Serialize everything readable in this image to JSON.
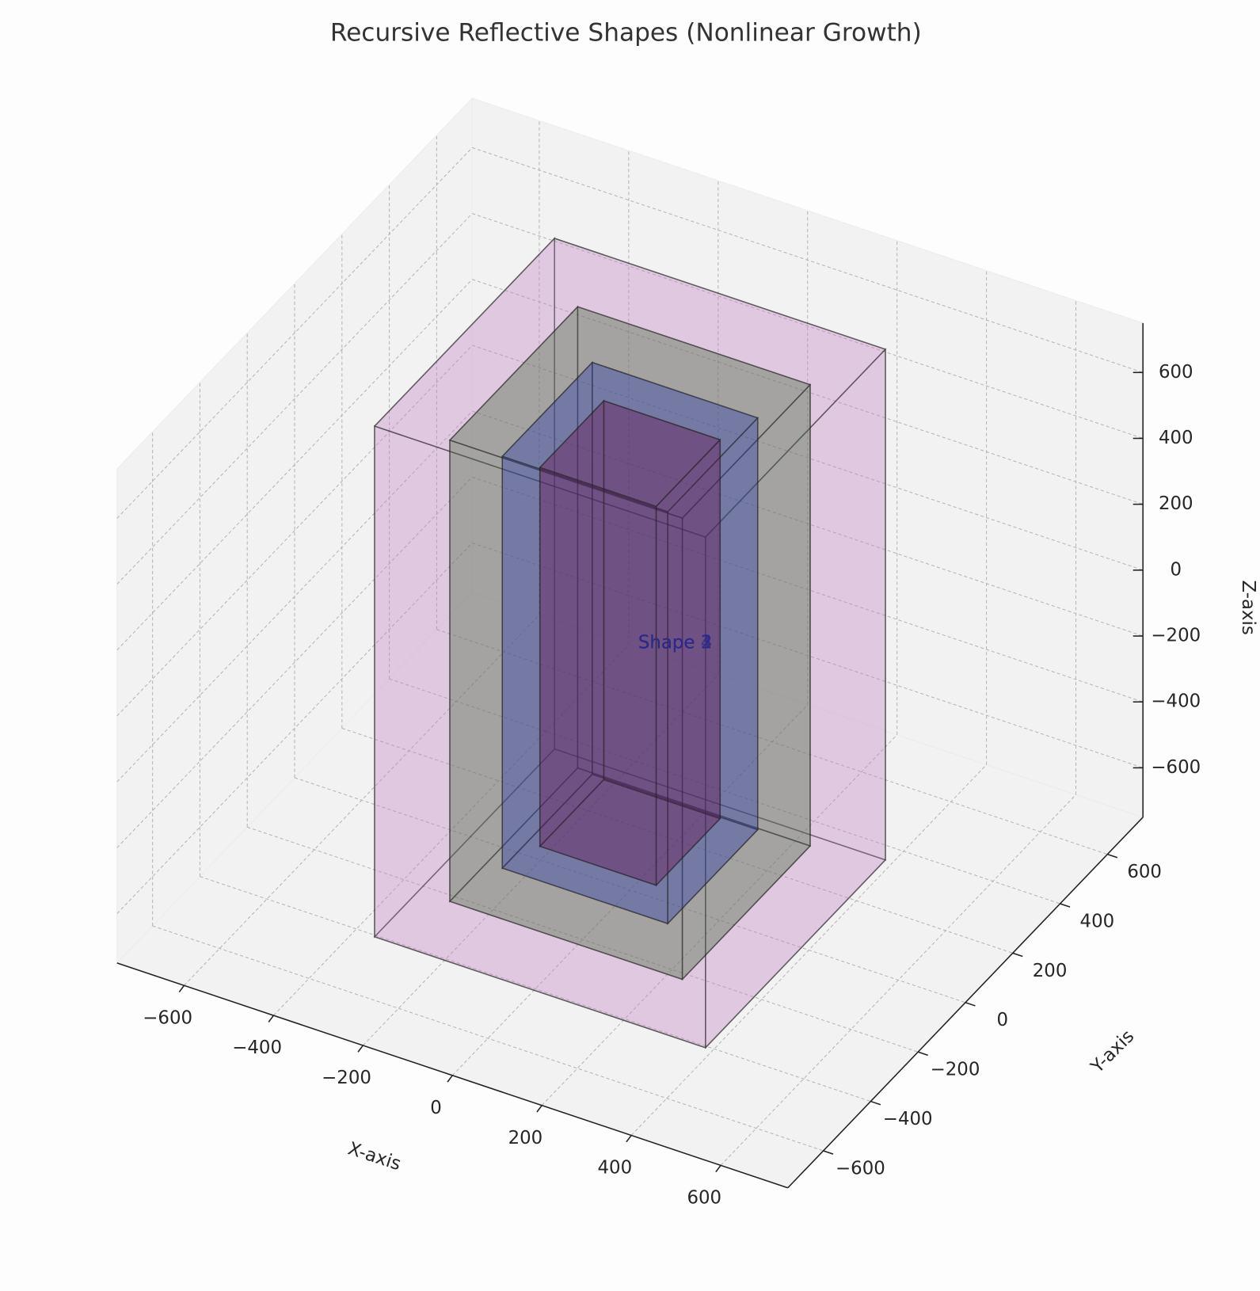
{
  "chart_data": {
    "type": "box3d",
    "title": "Recursive Reflective Shapes (Nonlinear Growth)",
    "xlabel": "X-axis",
    "ylabel": "Y-axis",
    "zlabel": "Z-axis",
    "xlim": [
      -750,
      750
    ],
    "ylim": [
      -750,
      750
    ],
    "zlim": [
      -750,
      750
    ],
    "xticks": [
      {
        "value": -600,
        "label": "−600"
      },
      {
        "value": -400,
        "label": "−400"
      },
      {
        "value": -200,
        "label": "−200"
      },
      0,
      200,
      400,
      600
    ],
    "yticks": [
      {
        "value": -600,
        "label": "−600"
      },
      {
        "value": -400,
        "label": "−400"
      },
      {
        "value": -200,
        "label": "−200"
      },
      0,
      200,
      400,
      600
    ],
    "zticks": [
      {
        "value": -600,
        "label": "−600"
      },
      {
        "value": -400,
        "label": "−400"
      },
      {
        "value": -200,
        "label": "−200"
      },
      0,
      200,
      400,
      600
    ],
    "grid": true,
    "series": [
      {
        "name": "Shape 4",
        "color": "#c48ac4",
        "size": [
          740,
          760,
          1550
        ]
      },
      {
        "name": "Shape 3",
        "color": "#4a6a3e",
        "size": [
          520,
          540,
          1400
        ]
      },
      {
        "name": "Shape 2",
        "color": "#2a3aa8",
        "size": [
          370,
          380,
          1250
        ]
      },
      {
        "name": "Shape 1",
        "color": "#6a1050",
        "size": [
          260,
          270,
          1150
        ]
      }
    ]
  }
}
